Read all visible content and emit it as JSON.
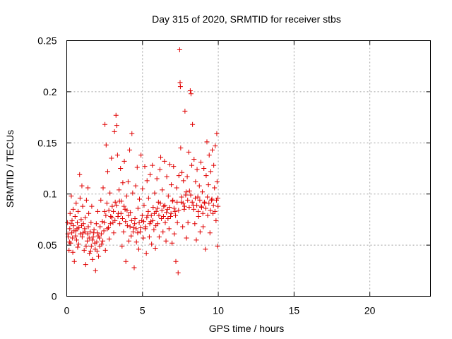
{
  "chart_data": {
    "type": "scatter",
    "title": "Day 315 of 2020, SRMTID for receiver stbs",
    "xlabel": "GPS time / hours",
    "ylabel": "SRMTID / TECUs",
    "xlim": [
      0,
      24
    ],
    "ylim": [
      0,
      0.25
    ],
    "xticks": [
      0,
      5,
      10,
      15,
      20
    ],
    "xtick_labels": [
      "0",
      "5",
      "10",
      "15",
      "20"
    ],
    "yticks": [
      0,
      0.05,
      0.1,
      0.15,
      0.2,
      0.25
    ],
    "ytick_labels": [
      "0",
      "0.05",
      "0.1",
      "0.15",
      "0.2",
      "0.25"
    ],
    "grid": true,
    "marker": "plus",
    "color": "#e00000",
    "series": [
      {
        "name": "SRMTID",
        "points": [
          [
            0.05,
            0.072
          ],
          [
            0.1,
            0.058
          ],
          [
            0.15,
            0.045
          ],
          [
            0.2,
            0.066
          ],
          [
            0.22,
            0.081
          ],
          [
            0.25,
            0.052
          ],
          [
            0.3,
            0.098
          ],
          [
            0.33,
            0.062
          ],
          [
            0.35,
            0.074
          ],
          [
            0.4,
            0.043
          ],
          [
            0.42,
            0.085
          ],
          [
            0.45,
            0.069
          ],
          [
            0.5,
            0.034
          ],
          [
            0.55,
            0.078
          ],
          [
            0.6,
            0.064
          ],
          [
            0.62,
            0.091
          ],
          [
            0.65,
            0.055
          ],
          [
            0.7,
            0.072
          ],
          [
            0.72,
            0.048
          ],
          [
            0.75,
            0.083
          ],
          [
            0.8,
            0.067
          ],
          [
            0.85,
            0.119
          ],
          [
            0.88,
            0.096
          ],
          [
            0.9,
            0.061
          ],
          [
            0.95,
            0.075
          ],
          [
            1.0,
            0.108
          ],
          [
            1.02,
            0.058
          ],
          [
            1.05,
            0.088
          ],
          [
            1.1,
            0.071
          ],
          [
            1.15,
            0.045
          ],
          [
            1.2,
            0.063
          ],
          [
            1.22,
            0.077
          ],
          [
            1.25,
            0.031
          ],
          [
            1.3,
            0.094
          ],
          [
            1.35,
            0.054
          ],
          [
            1.4,
            0.106
          ],
          [
            1.42,
            0.068
          ],
          [
            1.45,
            0.081
          ],
          [
            1.5,
            0.042
          ],
          [
            1.55,
            0.063
          ],
          [
            1.6,
            0.072
          ],
          [
            1.62,
            0.049
          ],
          [
            1.65,
            0.088
          ],
          [
            1.7,
            0.036
          ],
          [
            1.75,
            0.058
          ],
          [
            1.8,
            0.065
          ],
          [
            1.85,
            0.052
          ],
          [
            1.9,
            0.025
          ],
          [
            1.95,
            0.071
          ],
          [
            2.0,
            0.044
          ],
          [
            2.02,
            0.062
          ],
          [
            2.05,
            0.083
          ],
          [
            2.1,
            0.039
          ],
          [
            2.15,
            0.057
          ],
          [
            2.2,
            0.068
          ],
          [
            2.25,
            0.094
          ],
          [
            2.3,
            0.051
          ],
          [
            2.35,
            0.073
          ],
          [
            2.4,
            0.106
          ],
          [
            2.45,
            0.064
          ],
          [
            2.5,
            0.083
          ],
          [
            2.52,
            0.168
          ],
          [
            2.55,
            0.045
          ],
          [
            2.6,
            0.148
          ],
          [
            2.65,
            0.091
          ],
          [
            2.7,
            0.122
          ],
          [
            2.75,
            0.067
          ],
          [
            2.8,
            0.056
          ],
          [
            2.85,
            0.101
          ],
          [
            2.9,
            0.078
          ],
          [
            2.95,
            0.135
          ],
          [
            3.0,
            0.088
          ],
          [
            3.05,
            0.072
          ],
          [
            3.1,
            0.062
          ],
          [
            3.15,
            0.161
          ],
          [
            3.2,
            0.092
          ],
          [
            3.25,
            0.177
          ],
          [
            3.3,
            0.167
          ],
          [
            3.35,
            0.138
          ],
          [
            3.4,
            0.081
          ],
          [
            3.45,
            0.104
          ],
          [
            3.5,
            0.071
          ],
          [
            3.55,
            0.125
          ],
          [
            3.6,
            0.093
          ],
          [
            3.65,
            0.049
          ],
          [
            3.7,
            0.111
          ],
          [
            3.75,
            0.063
          ],
          [
            3.8,
            0.132
          ],
          [
            3.85,
            0.085
          ],
          [
            3.9,
            0.034
          ],
          [
            3.95,
            0.098
          ],
          [
            4.0,
            0.069
          ],
          [
            4.05,
            0.112
          ],
          [
            4.1,
            0.054
          ],
          [
            4.15,
            0.143
          ],
          [
            4.2,
            0.082
          ],
          [
            4.25,
            0.059
          ],
          [
            4.3,
            0.159
          ],
          [
            4.35,
            0.101
          ],
          [
            4.4,
            0.067
          ],
          [
            4.45,
            0.028
          ],
          [
            4.5,
            0.076
          ],
          [
            4.55,
            0.108
          ],
          [
            4.6,
            0.053
          ],
          [
            4.65,
            0.126
          ],
          [
            4.7,
            0.086
          ],
          [
            4.75,
            0.046
          ],
          [
            4.8,
            0.095
          ],
          [
            4.85,
            0.063
          ],
          [
            4.9,
            0.138
          ],
          [
            4.95,
            0.074
          ],
          [
            5.0,
            0.105
          ],
          [
            5.05,
            0.057
          ],
          [
            5.1,
            0.089
          ],
          [
            5.15,
            0.127
          ],
          [
            5.2,
            0.068
          ],
          [
            5.25,
            0.042
          ],
          [
            5.3,
            0.113
          ],
          [
            5.35,
            0.079
          ],
          [
            5.4,
            0.096
          ],
          [
            5.45,
            0.058
          ],
          [
            5.5,
            0.119
          ],
          [
            5.55,
            0.073
          ],
          [
            5.6,
            0.051
          ],
          [
            5.65,
            0.128
          ],
          [
            5.7,
            0.087
          ],
          [
            5.75,
            0.065
          ],
          [
            5.8,
            0.101
          ],
          [
            5.85,
            0.047
          ],
          [
            5.9,
            0.083
          ],
          [
            5.95,
            0.115
          ],
          [
            6.0,
            0.071
          ],
          [
            6.05,
            0.092
          ],
          [
            6.1,
            0.058
          ],
          [
            6.15,
            0.124
          ],
          [
            6.2,
            0.136
          ],
          [
            6.25,
            0.076
          ],
          [
            6.3,
            0.104
          ],
          [
            6.35,
            0.063
          ],
          [
            6.4,
            0.088
          ],
          [
            6.45,
            0.132
          ],
          [
            6.5,
            0.072
          ],
          [
            6.55,
            0.054
          ],
          [
            6.6,
            0.117
          ],
          [
            6.65,
            0.085
          ],
          [
            6.7,
            0.098
          ],
          [
            6.75,
            0.066
          ],
          [
            6.8,
            0.129
          ],
          [
            6.85,
            0.078
          ],
          [
            6.9,
            0.109
          ],
          [
            6.95,
            0.052
          ],
          [
            7.0,
            0.094
          ],
          [
            7.05,
            0.127
          ],
          [
            7.1,
            0.061
          ],
          [
            7.15,
            0.083
          ],
          [
            7.2,
            0.034
          ],
          [
            7.25,
            0.106
          ],
          [
            7.3,
            0.072
          ],
          [
            7.35,
            0.023
          ],
          [
            7.4,
            0.118
          ],
          [
            7.45,
            0.241
          ],
          [
            7.48,
            0.209
          ],
          [
            7.5,
            0.205
          ],
          [
            7.52,
            0.145
          ],
          [
            7.55,
            0.092
          ],
          [
            7.6,
            0.121
          ],
          [
            7.65,
            0.068
          ],
          [
            7.7,
            0.113
          ],
          [
            7.75,
            0.085
          ],
          [
            7.8,
            0.181
          ],
          [
            7.85,
            0.099
          ],
          [
            7.9,
            0.057
          ],
          [
            7.95,
            0.117
          ],
          [
            8.0,
            0.072
          ],
          [
            8.05,
            0.141
          ],
          [
            8.1,
            0.103
          ],
          [
            8.15,
            0.201
          ],
          [
            8.2,
            0.198
          ],
          [
            8.25,
            0.128
          ],
          [
            8.3,
            0.168
          ],
          [
            8.35,
            0.089
          ],
          [
            8.4,
            0.134
          ],
          [
            8.45,
            0.071
          ],
          [
            8.5,
            0.112
          ],
          [
            8.55,
            0.055
          ],
          [
            8.6,
            0.124
          ],
          [
            8.65,
            0.097
          ],
          [
            8.7,
            0.078
          ],
          [
            8.75,
            0.108
          ],
          [
            8.8,
            0.063
          ],
          [
            8.85,
            0.131
          ],
          [
            8.9,
            0.087
          ],
          [
            8.95,
            0.102
          ],
          [
            9.0,
            0.068
          ],
          [
            9.05,
            0.125
          ],
          [
            9.1,
            0.091
          ],
          [
            9.15,
            0.046
          ],
          [
            9.2,
            0.118
          ],
          [
            9.25,
            0.151
          ],
          [
            9.3,
            0.079
          ],
          [
            9.35,
            0.109
          ],
          [
            9.4,
            0.138
          ],
          [
            9.45,
            0.062
          ],
          [
            9.5,
            0.122
          ],
          [
            9.55,
            0.094
          ],
          [
            9.6,
            0.143
          ],
          [
            9.65,
            0.081
          ],
          [
            9.7,
            0.128
          ],
          [
            9.75,
            0.106
          ],
          [
            9.8,
            0.147
          ],
          [
            9.85,
            0.074
          ],
          [
            9.9,
            0.159
          ],
          [
            9.92,
            0.112
          ],
          [
            9.95,
            0.049
          ],
          [
            9.97,
            0.096
          ],
          [
            0.08,
            0.061
          ],
          [
            0.18,
            0.053
          ],
          [
            0.28,
            0.071
          ],
          [
            0.38,
            0.057
          ],
          [
            0.48,
            0.064
          ],
          [
            0.58,
            0.059
          ],
          [
            0.68,
            0.066
          ],
          [
            0.78,
            0.051
          ],
          [
            0.98,
            0.069
          ],
          [
            1.08,
            0.062
          ],
          [
            1.18,
            0.066
          ],
          [
            1.28,
            0.049
          ],
          [
            1.38,
            0.061
          ],
          [
            1.48,
            0.057
          ],
          [
            1.58,
            0.044
          ],
          [
            1.68,
            0.055
          ],
          [
            1.78,
            0.062
          ],
          [
            1.88,
            0.046
          ],
          [
            1.98,
            0.053
          ],
          [
            2.08,
            0.059
          ],
          [
            2.18,
            0.049
          ],
          [
            2.28,
            0.061
          ],
          [
            2.38,
            0.054
          ],
          [
            2.48,
            0.072
          ],
          [
            2.58,
            0.079
          ],
          [
            2.68,
            0.066
          ],
          [
            2.78,
            0.084
          ],
          [
            2.88,
            0.071
          ],
          [
            2.98,
            0.077
          ],
          [
            3.08,
            0.083
          ],
          [
            3.18,
            0.074
          ],
          [
            3.28,
            0.089
          ],
          [
            3.38,
            0.078
          ],
          [
            3.48,
            0.093
          ],
          [
            3.58,
            0.081
          ],
          [
            3.68,
            0.076
          ],
          [
            3.78,
            0.088
          ],
          [
            3.88,
            0.073
          ],
          [
            3.98,
            0.084
          ],
          [
            4.08,
            0.079
          ],
          [
            4.18,
            0.068
          ],
          [
            4.28,
            0.074
          ],
          [
            4.38,
            0.063
          ],
          [
            4.48,
            0.071
          ],
          [
            4.58,
            0.066
          ],
          [
            4.68,
            0.062
          ],
          [
            4.78,
            0.072
          ],
          [
            4.88,
            0.067
          ],
          [
            4.98,
            0.079
          ],
          [
            5.08,
            0.073
          ],
          [
            5.18,
            0.066
          ],
          [
            5.28,
            0.077
          ],
          [
            5.38,
            0.083
          ],
          [
            5.48,
            0.071
          ],
          [
            5.58,
            0.079
          ],
          [
            5.68,
            0.074
          ],
          [
            5.78,
            0.081
          ],
          [
            5.88,
            0.069
          ],
          [
            5.98,
            0.086
          ],
          [
            6.08,
            0.079
          ],
          [
            6.18,
            0.091
          ],
          [
            6.28,
            0.084
          ],
          [
            6.38,
            0.078
          ],
          [
            6.48,
            0.089
          ],
          [
            6.58,
            0.082
          ],
          [
            6.68,
            0.076
          ],
          [
            6.78,
            0.087
          ],
          [
            6.88,
            0.081
          ],
          [
            6.98,
            0.093
          ],
          [
            7.08,
            0.086
          ],
          [
            7.18,
            0.079
          ],
          [
            7.28,
            0.092
          ],
          [
            7.38,
            0.084
          ],
          [
            7.58,
            0.097
          ],
          [
            7.68,
            0.091
          ],
          [
            7.78,
            0.088
          ],
          [
            7.88,
            0.102
          ],
          [
            7.98,
            0.094
          ],
          [
            8.08,
            0.087
          ],
          [
            8.18,
            0.099
          ],
          [
            8.28,
            0.092
          ],
          [
            8.38,
            0.085
          ],
          [
            8.48,
            0.096
          ],
          [
            8.58,
            0.089
          ],
          [
            8.68,
            0.083
          ],
          [
            8.78,
            0.094
          ],
          [
            8.88,
            0.088
          ],
          [
            8.98,
            0.081
          ],
          [
            9.08,
            0.092
          ],
          [
            9.18,
            0.086
          ],
          [
            9.28,
            0.097
          ],
          [
            9.38,
            0.091
          ],
          [
            9.48,
            0.084
          ],
          [
            9.58,
            0.095
          ],
          [
            9.68,
            0.089
          ],
          [
            9.78,
            0.083
          ],
          [
            9.88,
            0.094
          ],
          [
            9.98,
            0.088
          ]
        ]
      }
    ]
  }
}
